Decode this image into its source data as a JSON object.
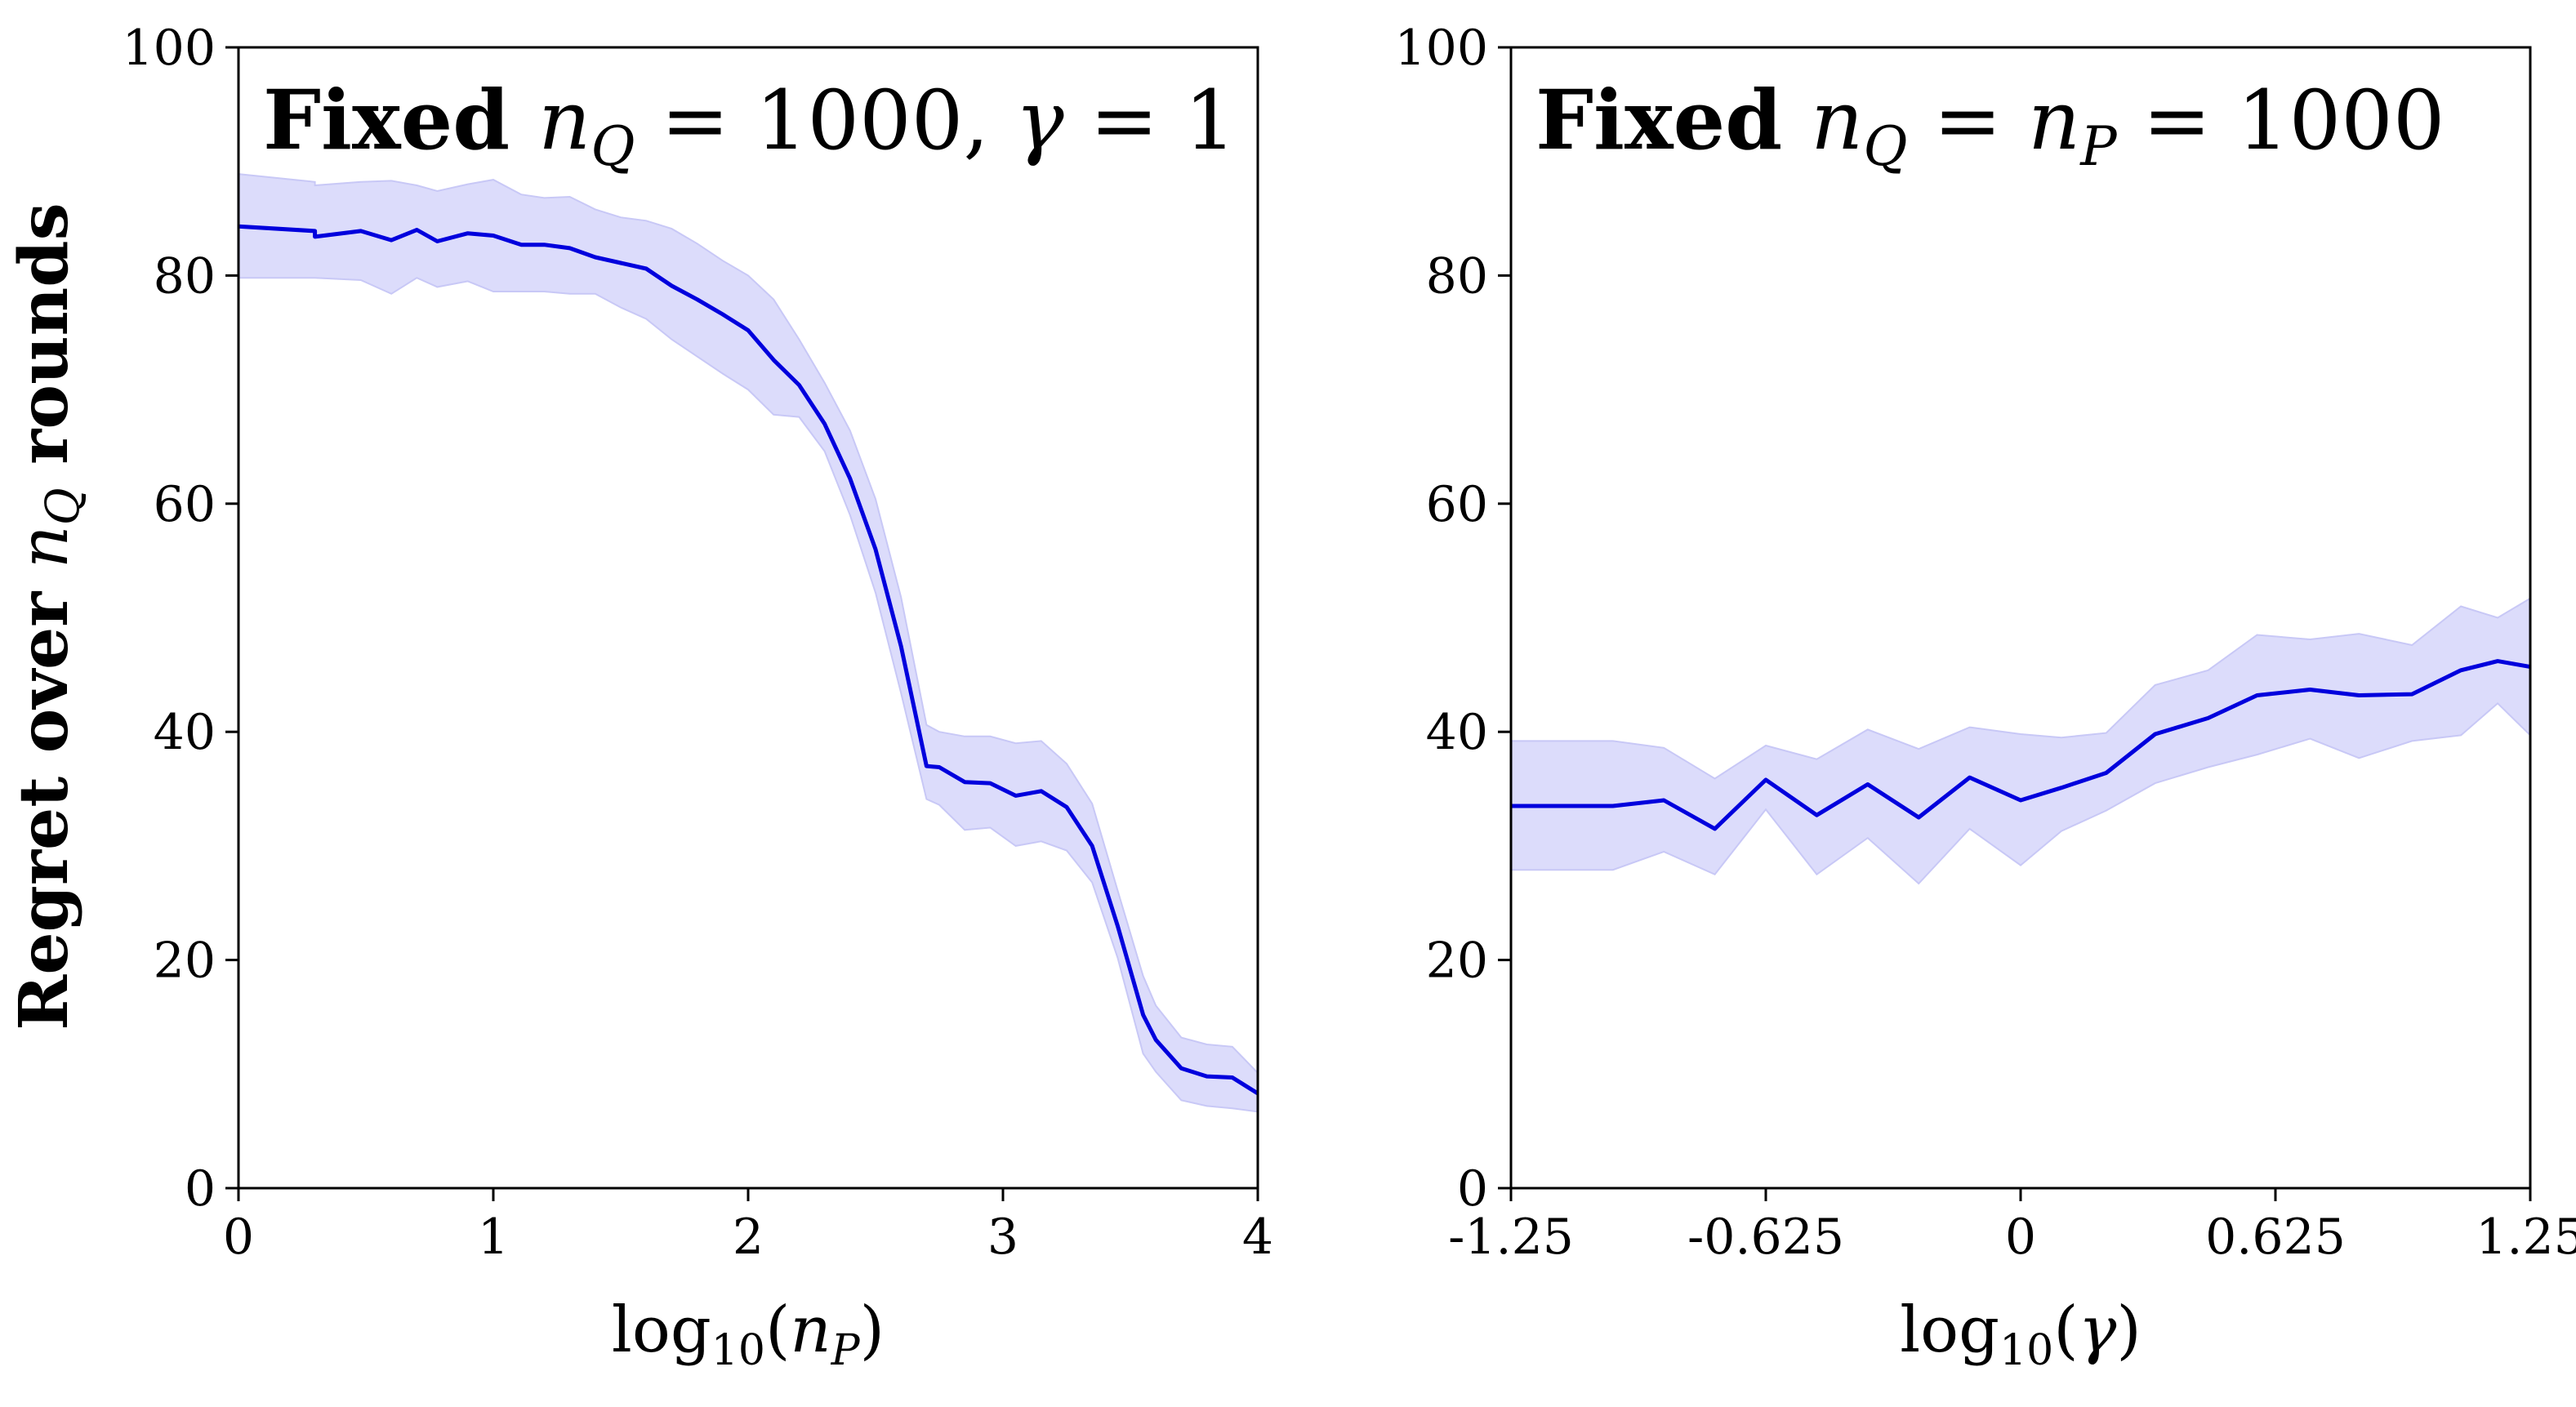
{
  "colors": {
    "line": "#0000dd",
    "band": "#dcdcfb",
    "band_edge": "#c8c8f6",
    "axes": "#000000"
  },
  "shared_ylabel": {
    "prefix": "Regret over ",
    "symbol": "n",
    "subscript": "Q",
    "suffix": " rounds"
  },
  "chart_data": [
    {
      "type": "line",
      "title": {
        "bold": "Fixed ",
        "math1": "n",
        "math1_sub": "Q",
        "rest1": " = 1000, ",
        "math2": "γ",
        "rest2": " = 1"
      },
      "xlabel": {
        "prefix": "log",
        "sub": "10",
        "open": "(",
        "var": "n",
        "var_sub": "P",
        "close": ")"
      },
      "xlim": [
        0,
        4
      ],
      "ylim": [
        0,
        100
      ],
      "xticks": [
        0,
        1,
        2,
        3,
        4
      ],
      "xtick_labels": [
        "0",
        "1",
        "2",
        "3",
        "4"
      ],
      "yticks": [
        0,
        20,
        40,
        60,
        80,
        100
      ],
      "ytick_labels": [
        "0",
        "20",
        "40",
        "60",
        "80",
        "100"
      ],
      "series": [
        {
          "name": "regret",
          "x": [
            0,
            0.3,
            0.3,
            0.48,
            0.6,
            0.7,
            0.78,
            0.9,
            1.0,
            1.11,
            1.2,
            1.3,
            1.4,
            1.5,
            1.6,
            1.7,
            1.8,
            1.9,
            2.0,
            2.1,
            2.2,
            2.3,
            2.4,
            2.5,
            2.6,
            2.7,
            2.75,
            2.85,
            2.95,
            3.05,
            3.15,
            3.25,
            3.35,
            3.45,
            3.55,
            3.6,
            3.7,
            3.8,
            3.9,
            4.0
          ],
          "values": [
            84.3,
            83.9,
            83.4,
            83.9,
            83.1,
            84.0,
            83.0,
            83.7,
            83.5,
            82.7,
            82.7,
            82.4,
            81.6,
            81.1,
            80.6,
            79.1,
            77.9,
            76.6,
            75.2,
            72.6,
            70.4,
            67.0,
            62.2,
            56.0,
            47.5,
            37.0,
            36.9,
            35.6,
            35.5,
            34.4,
            34.8,
            33.4,
            30.0,
            23.0,
            15.2,
            13.0,
            10.5,
            9.8,
            9.7,
            8.3
          ],
          "lower": [
            79.8,
            79.8,
            79.8,
            79.6,
            78.4,
            79.8,
            79.0,
            79.5,
            78.6,
            78.6,
            78.6,
            78.4,
            78.4,
            77.2,
            76.2,
            74.4,
            72.9,
            71.4,
            70.0,
            67.8,
            67.6,
            64.6,
            59.0,
            52.2,
            43.4,
            34.1,
            33.6,
            31.4,
            31.6,
            30.0,
            30.4,
            29.6,
            26.8,
            20.2,
            11.8,
            10.2,
            7.7,
            7.2,
            7.0,
            6.7
          ],
          "upper": [
            88.9,
            88.2,
            87.9,
            88.2,
            88.3,
            87.9,
            87.4,
            88.0,
            88.4,
            87.1,
            86.8,
            86.9,
            85.8,
            85.1,
            84.8,
            84.1,
            82.8,
            81.3,
            80.0,
            77.9,
            74.4,
            70.6,
            66.4,
            60.4,
            51.8,
            40.6,
            40.0,
            39.6,
            39.6,
            39.0,
            39.2,
            37.2,
            33.7,
            26.1,
            18.6,
            16.0,
            13.2,
            12.6,
            12.4,
            10.1
          ]
        }
      ]
    },
    {
      "type": "line",
      "title": {
        "bold": "Fixed ",
        "math1": "n",
        "math1_sub": "Q",
        "rest1": " = ",
        "math2": "n",
        "math2_sub": "P",
        "rest2": " = 1000"
      },
      "xlabel": {
        "prefix": "log",
        "sub": "10",
        "open": "(",
        "var": "γ",
        "var_sub": "",
        "close": ")"
      },
      "xlim": [
        -1.25,
        1.25
      ],
      "ylim": [
        0,
        100
      ],
      "xticks": [
        -1.25,
        -0.625,
        0,
        0.625,
        1.25
      ],
      "xtick_labels": [
        "-1.25",
        "-0.625",
        "0",
        "0.625",
        "1.25"
      ],
      "yticks": [
        0,
        20,
        40,
        60,
        80,
        100
      ],
      "ytick_labels": [
        "0",
        "20",
        "40",
        "60",
        "80",
        "100"
      ],
      "series": [
        {
          "name": "regret",
          "x": [
            -1.25,
            -1.0,
            -0.875,
            -0.75,
            -0.625,
            -0.5,
            -0.375,
            -0.25,
            -0.125,
            0.0,
            0.1,
            0.21,
            0.33,
            0.46,
            0.58,
            0.71,
            0.83,
            0.96,
            1.08,
            1.17,
            1.25
          ],
          "values": [
            33.5,
            33.5,
            34.0,
            31.5,
            35.8,
            32.7,
            35.4,
            32.5,
            36.0,
            34.0,
            35.1,
            36.4,
            39.8,
            41.2,
            43.2,
            43.7,
            43.2,
            43.3,
            45.4,
            46.2,
            45.7
          ],
          "lower": [
            27.9,
            27.9,
            29.5,
            27.5,
            33.2,
            27.5,
            30.7,
            26.7,
            31.5,
            28.3,
            31.3,
            33.1,
            35.5,
            36.9,
            38.0,
            39.4,
            37.7,
            39.2,
            39.7,
            42.5,
            39.7
          ],
          "upper": [
            39.2,
            39.2,
            38.6,
            35.9,
            38.8,
            37.6,
            40.2,
            38.5,
            40.4,
            39.8,
            39.5,
            39.9,
            44.1,
            45.4,
            48.5,
            48.1,
            48.6,
            47.6,
            51.0,
            50.0,
            51.7
          ]
        }
      ]
    }
  ]
}
